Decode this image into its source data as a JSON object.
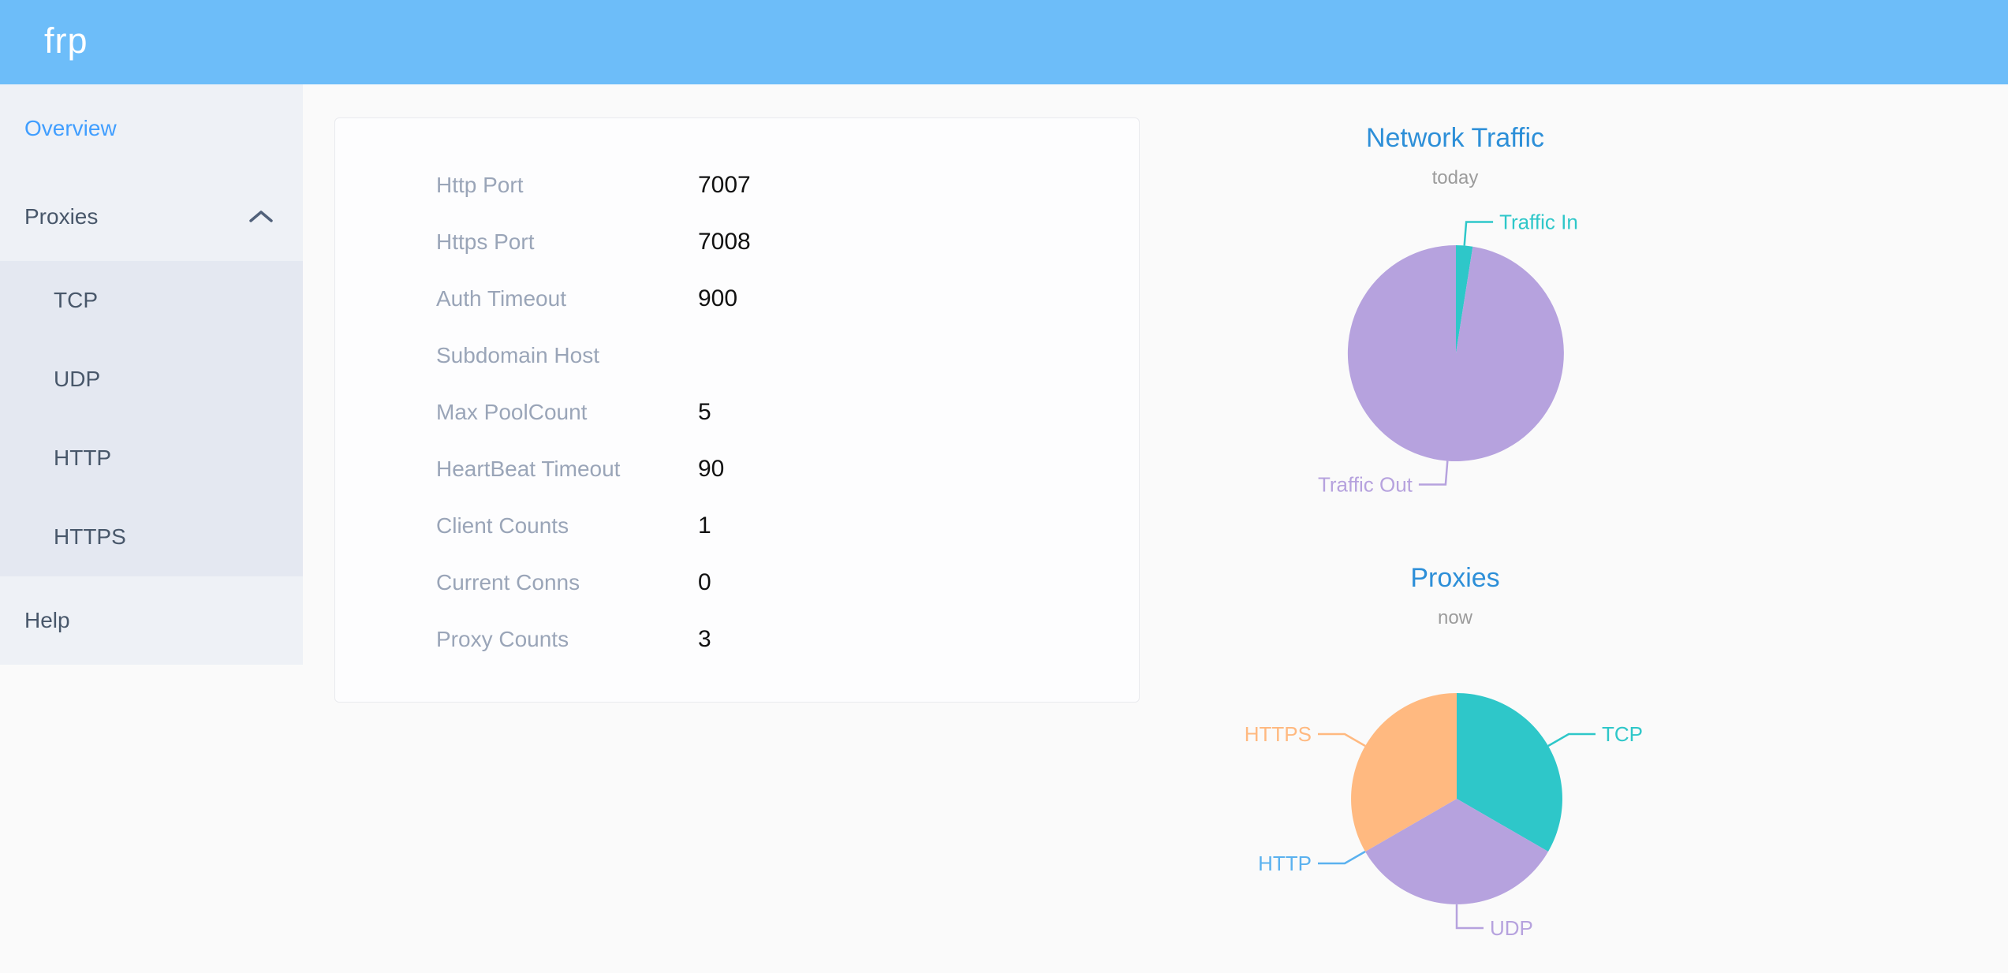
{
  "app": {
    "logo": "frp"
  },
  "sidebar": {
    "items": [
      {
        "label": "Overview",
        "active": true
      },
      {
        "label": "Proxies",
        "expanded": true,
        "children": [
          "TCP",
          "UDP",
          "HTTP",
          "HTTPS"
        ]
      },
      {
        "label": "Help"
      }
    ]
  },
  "overview_card": {
    "rows": [
      {
        "label": "Http Port",
        "value": "7007"
      },
      {
        "label": "Https Port",
        "value": "7008"
      },
      {
        "label": "Auth Timeout",
        "value": "900"
      },
      {
        "label": "Subdomain Host",
        "value": ""
      },
      {
        "label": "Max PoolCount",
        "value": "5"
      },
      {
        "label": "HeartBeat Timeout",
        "value": "90"
      },
      {
        "label": "Client Counts",
        "value": "1"
      },
      {
        "label": "Current Conns",
        "value": "0"
      },
      {
        "label": "Proxy Counts",
        "value": "3"
      }
    ]
  },
  "chart_data": [
    {
      "type": "pie",
      "title": "Network Traffic",
      "subtitle": "today",
      "labels_position": "outside",
      "legend": "none",
      "values_are_estimated_percent": true,
      "slices": [
        {
          "label": "Traffic In",
          "value": 2.5,
          "color": "#2ec7c9"
        },
        {
          "label": "Traffic Out",
          "value": 97.5,
          "color": "#b6a2de"
        }
      ]
    },
    {
      "type": "pie",
      "title": "Proxies",
      "subtitle": "now",
      "labels_position": "outside",
      "legend": "none",
      "slices": [
        {
          "label": "TCP",
          "value": 1,
          "color": "#2ec7c9"
        },
        {
          "label": "UDP",
          "value": 1,
          "color": "#b6a2de"
        },
        {
          "label": "HTTP",
          "value": 0,
          "color": "#5ab1ef"
        },
        {
          "label": "HTTPS",
          "value": 1,
          "color": "#ffb980"
        }
      ]
    }
  ],
  "colors": {
    "header_bg": "#6dbdf9",
    "sidebar_bg": "#eef1f6",
    "submenu_bg": "#e4e8f1",
    "menu_text": "#48576a",
    "menu_active_text": "#409eff",
    "chart_title_blue": "#2d8fd8",
    "subtitle_gray": "#9b9b9b",
    "label_gray": "#9aa5b8",
    "value_black": "#111111",
    "pie_teal": "#2ec7c9",
    "pie_purple": "#b6a2de",
    "pie_blue": "#5ab1ef",
    "pie_orange": "#ffb980",
    "page_bg": "#fafafa",
    "card_border": "#e9eaee"
  }
}
